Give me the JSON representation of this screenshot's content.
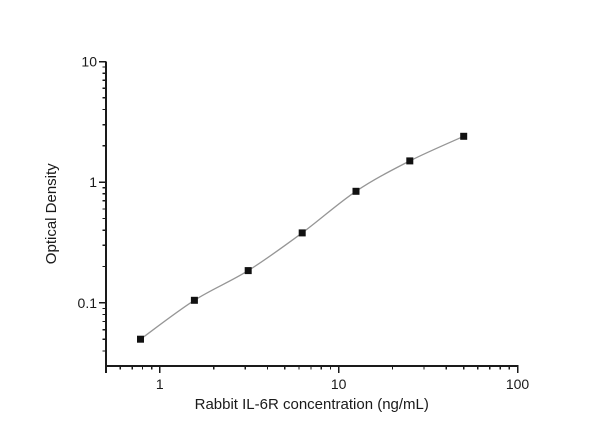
{
  "figure": {
    "background": "#ffffff"
  },
  "colors": {
    "axis": "#1a1a1a",
    "text": "#1a1a1a",
    "curve_line": "#969696",
    "marker": "#111111"
  },
  "chart_data": {
    "type": "scatter",
    "title": "",
    "xlabel": "Rabbit IL-6R concentration (ng/mL)",
    "ylabel": "Optical Density",
    "x_scale": "log",
    "y_scale": "log",
    "xlim": [
      0.5,
      100
    ],
    "ylim": [
      0.03,
      10
    ],
    "grid": false,
    "legend": false,
    "x_ticks": [
      {
        "value": 1,
        "label": "1"
      },
      {
        "value": 10,
        "label": "10"
      },
      {
        "value": 100,
        "label": "100"
      }
    ],
    "y_ticks": [
      {
        "value": 0.1,
        "label": "0.1"
      },
      {
        "value": 1,
        "label": "1"
      },
      {
        "value": 10,
        "label": "10"
      }
    ],
    "series": [
      {
        "name": "standard-curve",
        "marker": "filled-square",
        "line_style": "smooth-fit",
        "points": [
          [
            0.78,
            0.05
          ],
          [
            1.56,
            0.105
          ],
          [
            3.12,
            0.185
          ],
          [
            6.25,
            0.38
          ],
          [
            12.5,
            0.84
          ],
          [
            25,
            1.5
          ],
          [
            50,
            2.4
          ]
        ]
      }
    ]
  }
}
